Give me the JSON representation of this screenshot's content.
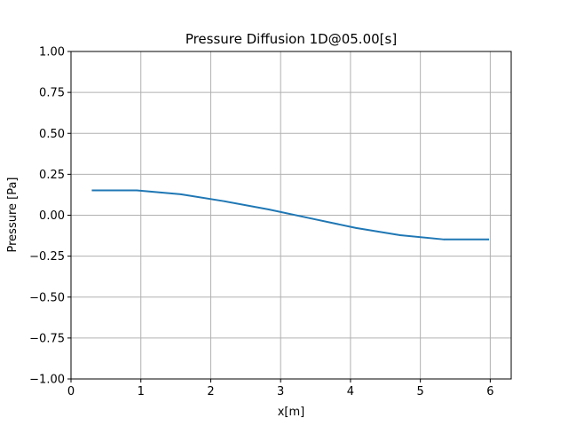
{
  "chart_data": {
    "type": "line",
    "title": "Pressure Diffusion 1D@05.00[s]",
    "xlabel": "x[m]",
    "ylabel": "Pressure [Pa]",
    "xlim": [
      0,
      6.3
    ],
    "ylim": [
      -1.0,
      1.0
    ],
    "grid": true,
    "x_ticks": [
      0,
      1,
      2,
      3,
      4,
      5,
      6
    ],
    "x_tick_labels": [
      "0",
      "1",
      "2",
      "3",
      "4",
      "5",
      "6"
    ],
    "y_ticks": [
      1.0,
      0.75,
      0.5,
      0.25,
      0.0,
      -0.25,
      -0.5,
      -0.75,
      -1.0
    ],
    "y_tick_labels": [
      "1.00",
      "0.75",
      "0.50",
      "0.25",
      "0.00",
      "−0.25",
      "−0.50",
      "−0.75",
      "−1.00"
    ],
    "series": [
      {
        "name": "pressure",
        "color": "#1f77b4",
        "x": [
          0.31,
          0.94,
          1.57,
          2.2,
          2.83,
          3.46,
          4.08,
          4.71,
          5.34,
          5.97
        ],
        "y": [
          0.152,
          0.152,
          0.128,
          0.085,
          0.035,
          -0.022,
          -0.078,
          -0.122,
          -0.148,
          -0.148
        ]
      }
    ]
  }
}
